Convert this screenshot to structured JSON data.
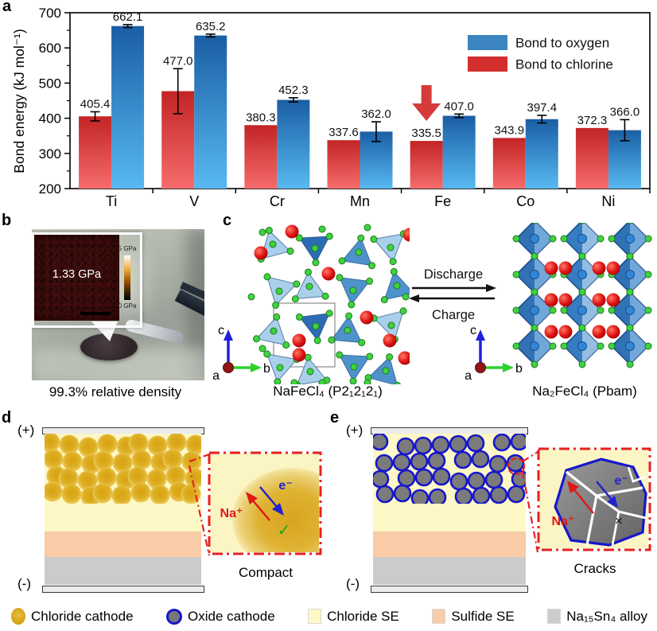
{
  "figure": {
    "panel_labels": {
      "a": "a",
      "b": "b",
      "c": "c",
      "d": "d",
      "e": "e"
    }
  },
  "chart_data": {
    "type": "bar",
    "title": "",
    "ylabel": "Bond energy (kJ mol⁻¹)",
    "xlabel": "",
    "ylim": [
      200,
      700
    ],
    "ytick_step": 100,
    "grid": false,
    "legend_position": "top-right",
    "categories": [
      "Ti",
      "V",
      "Cr",
      "Mn",
      "Fe",
      "Co",
      "Ni"
    ],
    "series": [
      {
        "name": "Bond to oxygen",
        "legend_color": "#3d85c0",
        "bar_top": "#1a5ea5",
        "bar_bottom": "#58b9f0",
        "values": [
          662.1,
          635.2,
          452.3,
          362.0,
          407.0,
          397.4,
          366.0
        ],
        "errors": [
          4,
          4,
          6,
          28,
          5,
          11,
          30
        ]
      },
      {
        "name": "Bond to chlorine",
        "legend_color": "#d32f2f",
        "bar_top": "#c22424",
        "bar_bottom": "#f66c6c",
        "values": [
          405.4,
          477.0,
          380.3,
          337.6,
          335.5,
          343.9,
          372.3
        ],
        "errors": [
          13,
          64,
          0,
          0,
          0,
          0,
          0
        ]
      }
    ],
    "annotation": {
      "category": "Fe",
      "shape": "down-arrow",
      "color": "#d63b3b"
    }
  },
  "panel_b": {
    "inset_value": "1.33 GPa",
    "colorbar_top": "5 GPa",
    "colorbar_bottom": "0 GPa",
    "caption": "99.3% relative density"
  },
  "panel_c": {
    "discharge_label": "Discharge",
    "charge_label": "Charge",
    "left_formula": "NaFeCl₄ (P2₁2₁2₁)",
    "right_formula": "Na₂FeCl₄ (Pbam)",
    "axis_a": "a",
    "axis_b": "b",
    "axis_c": "c"
  },
  "panel_d": {
    "positive": "(+)",
    "negative": "(-)",
    "na_ion": "Na⁺",
    "electron": "e⁻",
    "check_mark": "✓",
    "caption": "Compact"
  },
  "panel_e": {
    "positive": "(+)",
    "negative": "(-)",
    "na_ion": "Na⁺",
    "electron": "e⁻",
    "cross_mark": "×",
    "caption": "Cracks"
  },
  "legend": {
    "items": [
      {
        "label": "Chloride cathode",
        "swatch": "chloride-cathode"
      },
      {
        "label": "Oxide cathode",
        "swatch": "oxide-cathode"
      },
      {
        "label": "Chloride SE",
        "swatch": "chloride-se",
        "color": "#fdf8c6"
      },
      {
        "label": "Sulfide SE",
        "swatch": "sulfide-se",
        "color": "#f9cba6"
      },
      {
        "label": "Na₁₅Sn₄ alloy",
        "swatch": "alloy",
        "color": "#cccccc"
      }
    ]
  },
  "colors": {
    "chloride_se": "#fdf8c6",
    "sulfide_se": "#f9cba6",
    "alloy": "#cbcbcb",
    "oxide_outline": "#1616cc",
    "inset_border": "#e82020"
  }
}
